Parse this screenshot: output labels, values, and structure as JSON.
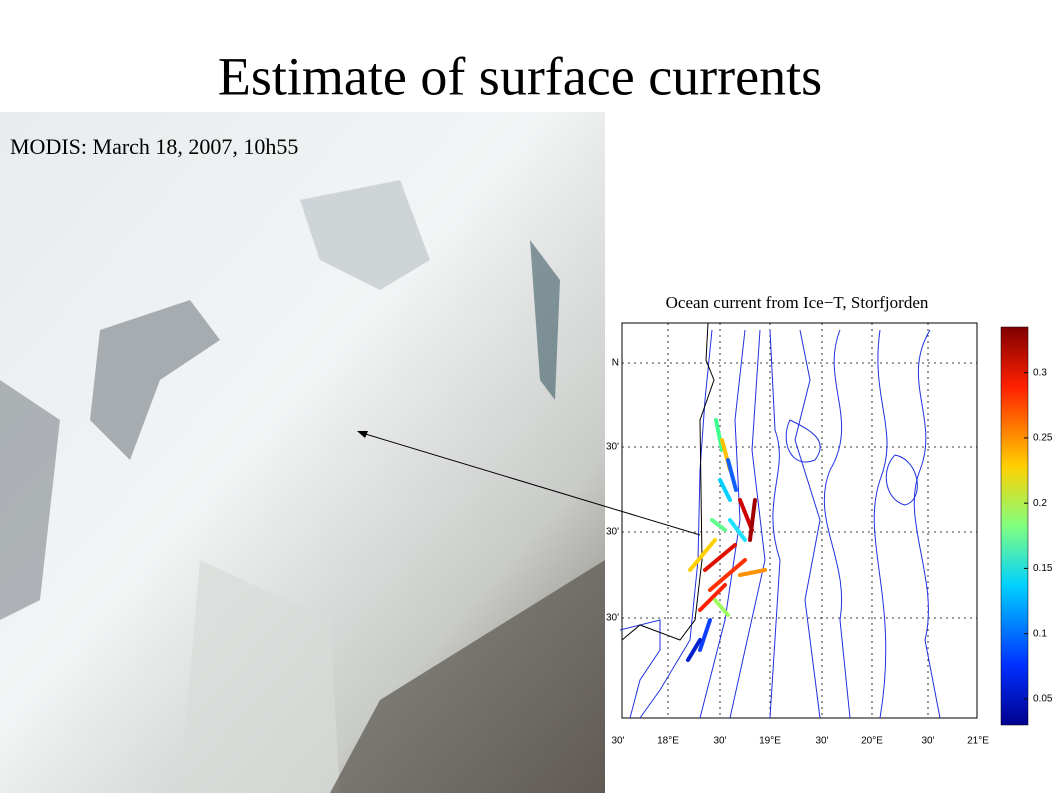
{
  "slide": {
    "title": "Estimate of surface currents",
    "image_caption": "MODIS: March 18, 2007, 10h55",
    "map": {
      "title": "Ocean current from  Ice−T, Storfjorden",
      "x_tick_labels": [
        "30'",
        "18°E",
        "30'",
        "19°E",
        "30'",
        "20°E",
        "30'",
        "21°E"
      ],
      "y_tick_labels": [
        "N",
        "30'",
        "30'",
        "30'"
      ]
    },
    "colorbar": {
      "ylim": [
        0.03,
        0.335
      ],
      "ticks": [
        0.3,
        0.25,
        0.2,
        0.15,
        0.1,
        0.05
      ]
    }
  }
}
